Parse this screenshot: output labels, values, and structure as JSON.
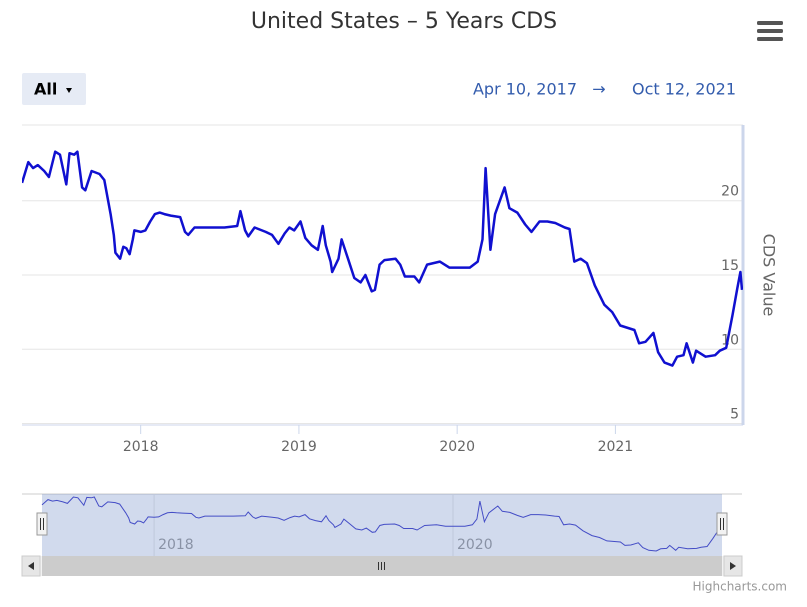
{
  "chart_data": {
    "type": "line",
    "title": "United States – 5 Years CDS",
    "ylabel": "CDS Value",
    "range_selector": {
      "button": "All",
      "from": "Apr 10, 2017",
      "separator": "→",
      "to": "Oct 12, 2021"
    },
    "credits": "Highcharts.com",
    "color": "#1010d0",
    "navigator_color": "#3535c8",
    "grid": true,
    "x": [
      2017.25,
      2017.29,
      2017.32,
      2017.35,
      2017.39,
      2017.42,
      2017.46,
      2017.49,
      2017.53,
      2017.55,
      2017.58,
      2017.6,
      2017.63,
      2017.65,
      2017.69,
      2017.74,
      2017.77,
      2017.81,
      2017.83,
      2017.84,
      2017.87,
      2017.89,
      2017.91,
      2017.93,
      2017.95,
      2017.96,
      2018.0,
      2018.03,
      2018.06,
      2018.09,
      2018.12,
      2018.15,
      2018.19,
      2018.25,
      2018.28,
      2018.3,
      2018.34,
      2018.44,
      2018.53,
      2018.61,
      2018.63,
      2018.66,
      2018.68,
      2018.72,
      2018.79,
      2018.83,
      2018.87,
      2018.91,
      2018.94,
      2018.97,
      2019.01,
      2019.04,
      2019.08,
      2019.12,
      2019.15,
      2019.17,
      2019.2,
      2019.21,
      2019.25,
      2019.27,
      2019.31,
      2019.35,
      2019.39,
      2019.42,
      2019.46,
      2019.48,
      2019.51,
      2019.54,
      2019.61,
      2019.64,
      2019.67,
      2019.73,
      2019.76,
      2019.81,
      2019.89,
      2019.95,
      2020.08,
      2020.13,
      2020.16,
      2020.18,
      2020.21,
      2020.24,
      2020.3,
      2020.33,
      2020.38,
      2020.43,
      2020.47,
      2020.52,
      2020.57,
      2020.62,
      2020.68,
      2020.71,
      2020.74,
      2020.78,
      2020.82,
      2020.87,
      2020.93,
      2020.98,
      2021.03,
      2021.12,
      2021.15,
      2021.19,
      2021.24,
      2021.27,
      2021.31,
      2021.36,
      2021.39,
      2021.43,
      2021.45,
      2021.49,
      2021.51,
      2021.57,
      2021.63,
      2021.66,
      2021.7,
      2021.74,
      2021.77,
      2021.79,
      2021.8
    ],
    "values": [
      21.2,
      22.6,
      22.2,
      22.4,
      22.0,
      21.6,
      23.3,
      23.1,
      21.1,
      23.2,
      23.1,
      23.3,
      20.9,
      20.7,
      22.0,
      21.8,
      21.4,
      19.1,
      17.7,
      16.5,
      16.1,
      16.9,
      16.8,
      16.4,
      17.4,
      18.0,
      17.9,
      18.0,
      18.6,
      19.1,
      19.2,
      19.1,
      19.0,
      18.9,
      17.9,
      17.7,
      18.2,
      18.2,
      18.2,
      18.3,
      19.3,
      18.0,
      17.6,
      18.2,
      17.9,
      17.7,
      17.1,
      17.8,
      18.2,
      18.0,
      18.6,
      17.5,
      17.0,
      16.7,
      18.3,
      17.0,
      15.9,
      15.2,
      16.1,
      17.4,
      16.1,
      14.8,
      14.5,
      15.0,
      13.9,
      14.0,
      15.7,
      16.0,
      16.1,
      15.7,
      14.9,
      14.9,
      14.5,
      15.7,
      15.9,
      15.5,
      15.5,
      15.9,
      17.4,
      22.2,
      16.7,
      19.1,
      20.9,
      19.5,
      19.2,
      18.4,
      17.9,
      18.6,
      18.6,
      18.5,
      18.2,
      18.1,
      15.9,
      16.1,
      15.8,
      14.3,
      13.0,
      12.5,
      11.6,
      11.3,
      10.4,
      10.5,
      11.1,
      9.8,
      9.1,
      8.9,
      9.5,
      9.6,
      10.4,
      9.1,
      9.9,
      9.5,
      9.6,
      9.9,
      10.1,
      12.3,
      14.1,
      15.2,
      14.0
    ],
    "xlim": [
      2017.25,
      2021.8
    ],
    "xticks": [
      2018,
      2019,
      2020,
      2021
    ],
    "ylim": [
      4.9,
      25.1
    ],
    "yticks": [
      5,
      10,
      15,
      20
    ],
    "navigator_xticks": [
      2018,
      2020
    ]
  }
}
